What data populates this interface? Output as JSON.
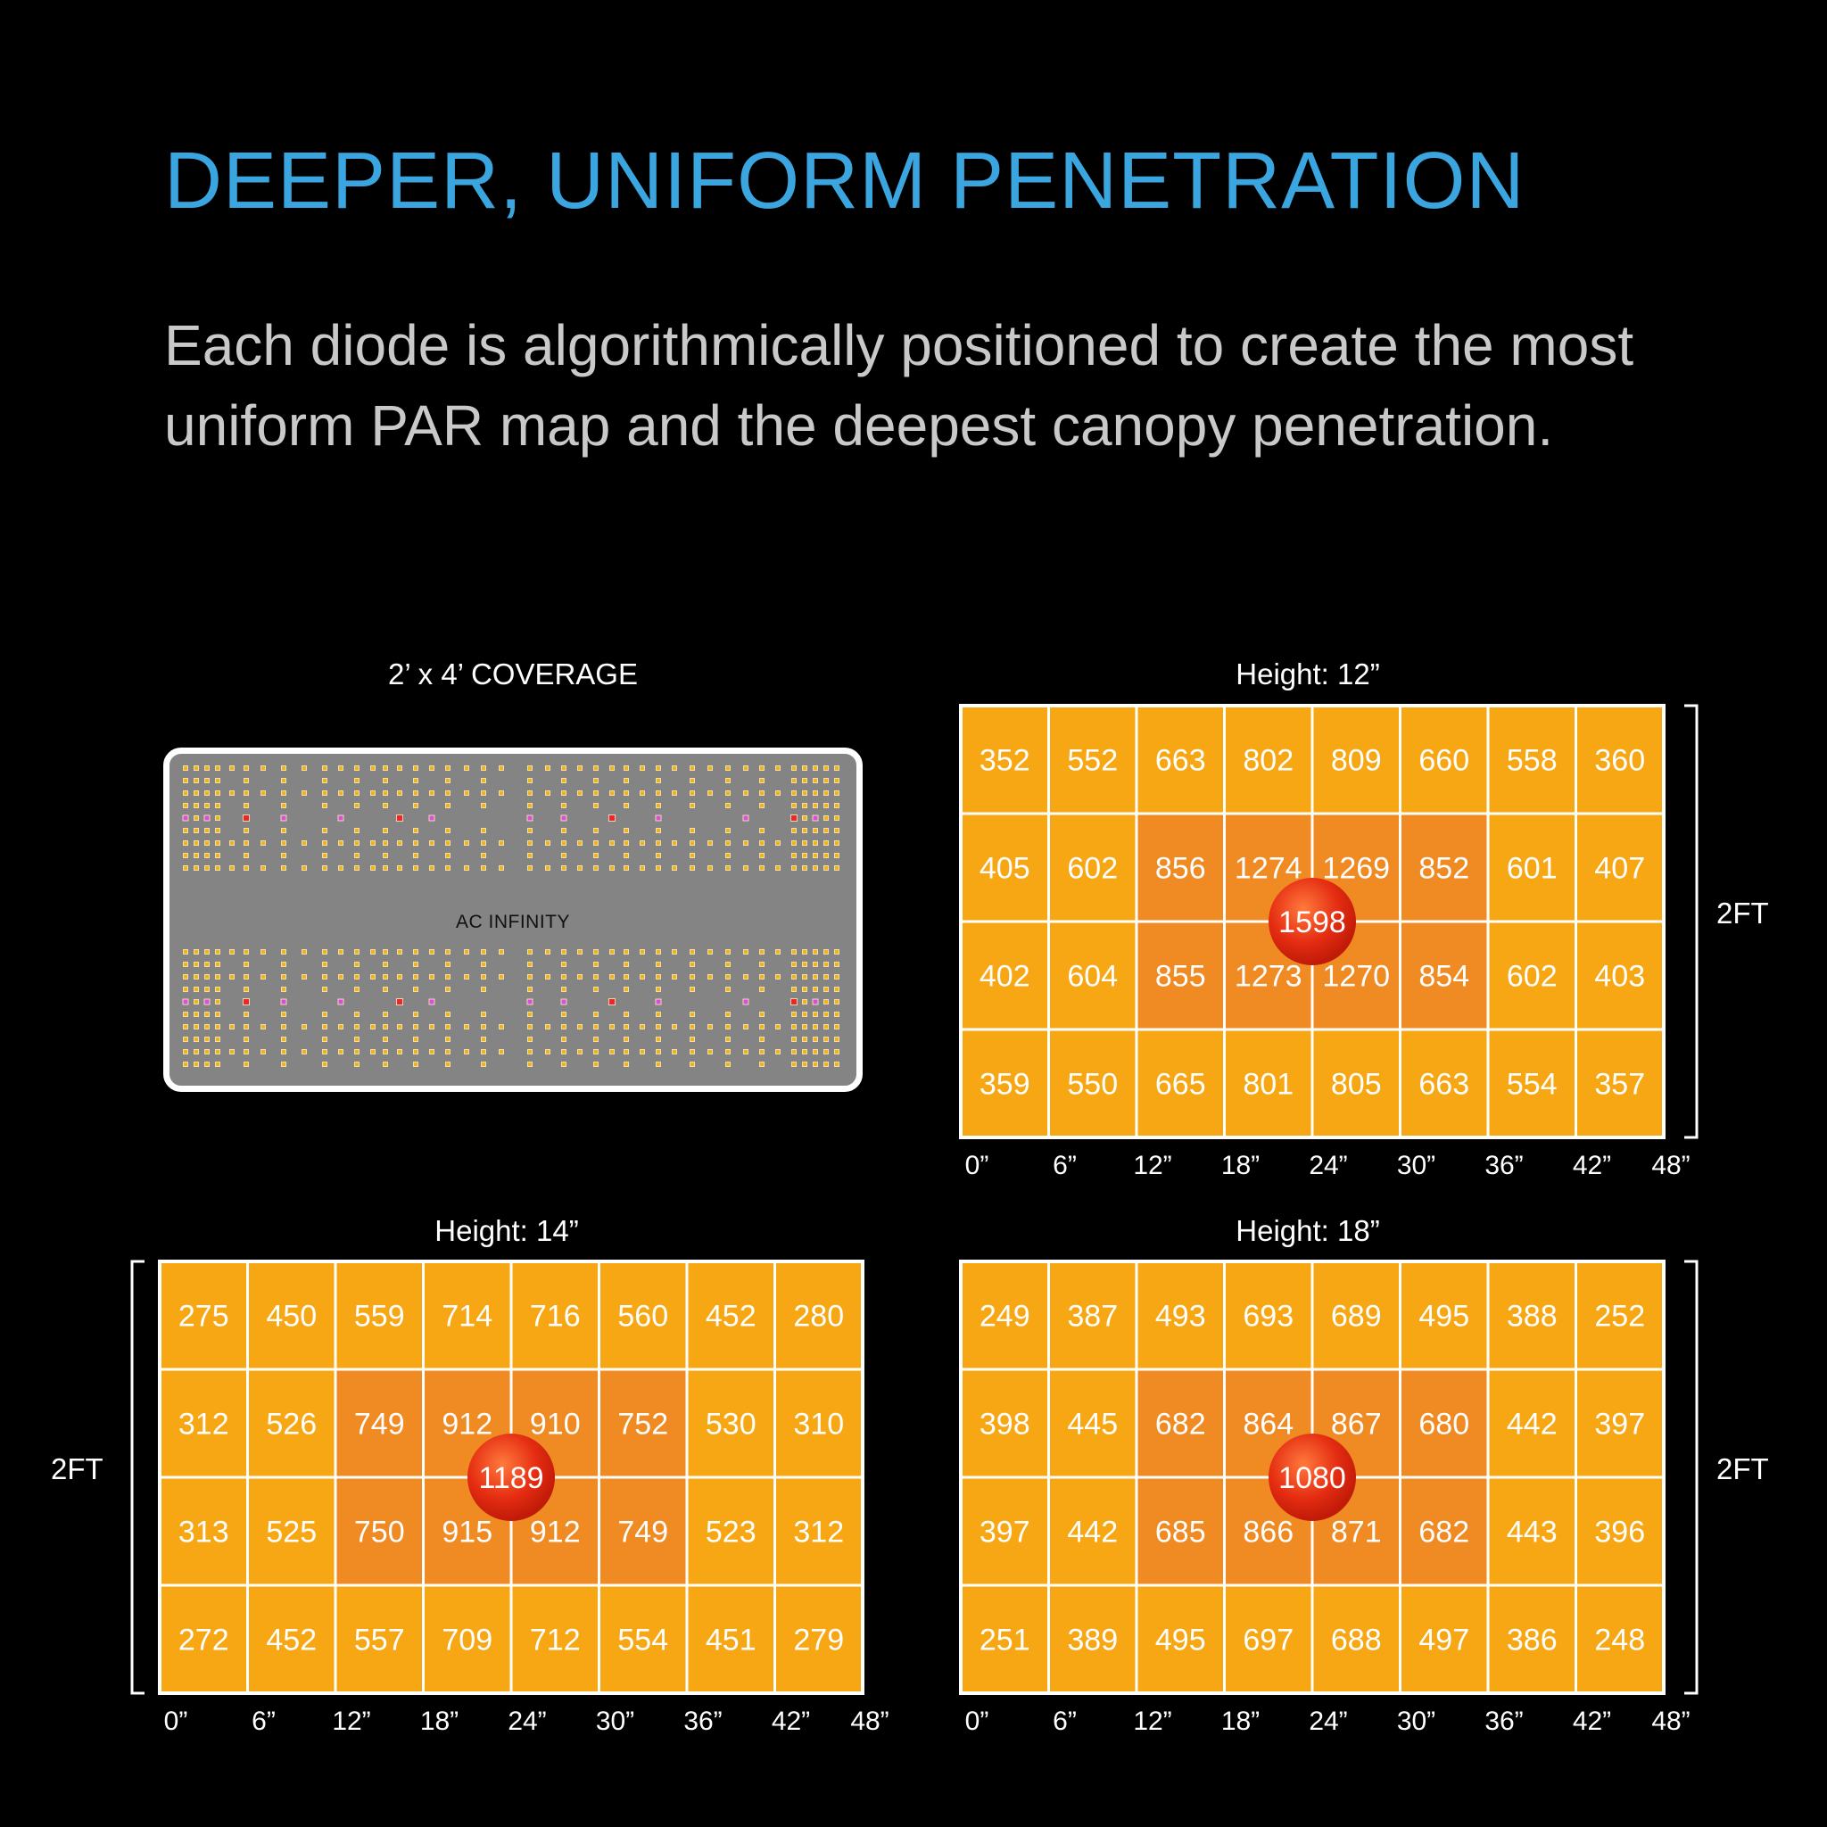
{
  "headline": "DEEPER, UNIFORM PENETRATION",
  "subtitle": "Each diode is algorithmically positioned to create the most uniform PAR map and the deepest canopy penetration.",
  "fixture": {
    "title": "2’ x 4’ COVERAGE",
    "brand": "AC INFINITY",
    "colors": {
      "body": "#848484",
      "frame": "#ffffff",
      "diode": "#f2b21a",
      "uv_diode": "#d94fd8",
      "red_diode": "#e8282d"
    }
  },
  "chart_data": [
    {
      "type": "heatmap",
      "title": "Height: 12”",
      "xlabel": "",
      "ylabel": "2FT",
      "x_ticks": [
        "0”",
        "6”",
        "12”",
        "18”",
        "24”",
        "30”",
        "36”",
        "42”",
        "48”"
      ],
      "rows": [
        [
          352,
          552,
          663,
          802,
          809,
          660,
          558,
          360
        ],
        [
          405,
          602,
          856,
          1274,
          1269,
          852,
          601,
          407
        ],
        [
          402,
          604,
          855,
          1273,
          1270,
          854,
          602,
          403
        ],
        [
          359,
          550,
          665,
          801,
          805,
          663,
          554,
          357
        ]
      ],
      "peak": 1598
    },
    {
      "type": "heatmap",
      "title": "Height: 14”",
      "xlabel": "",
      "ylabel": "2FT",
      "x_ticks": [
        "0”",
        "6”",
        "12”",
        "18”",
        "24”",
        "30”",
        "36”",
        "42”",
        "48”"
      ],
      "rows": [
        [
          275,
          450,
          559,
          714,
          716,
          560,
          452,
          280
        ],
        [
          312,
          526,
          749,
          912,
          910,
          752,
          530,
          310
        ],
        [
          313,
          525,
          750,
          915,
          912,
          749,
          523,
          312
        ],
        [
          272,
          452,
          557,
          709,
          712,
          554,
          451,
          279
        ]
      ],
      "peak": 1189
    },
    {
      "type": "heatmap",
      "title": "Height: 18”",
      "xlabel": "",
      "ylabel": "2FT",
      "x_ticks": [
        "0”",
        "6”",
        "12”",
        "18”",
        "24”",
        "30”",
        "36”",
        "42”",
        "48”"
      ],
      "rows": [
        [
          249,
          387,
          493,
          693,
          689,
          495,
          388,
          252
        ],
        [
          398,
          445,
          682,
          864,
          867,
          680,
          442,
          397
        ],
        [
          397,
          442,
          685,
          866,
          871,
          682,
          443,
          396
        ],
        [
          251,
          389,
          495,
          697,
          688,
          497,
          386,
          248
        ]
      ],
      "peak": 1080
    }
  ],
  "colors": {
    "headline": "#3aa5de",
    "cell": "#f7a713",
    "cell_core": "#f08a22",
    "grid_line": "#ffffff",
    "peak_spot": "#e52d12"
  }
}
